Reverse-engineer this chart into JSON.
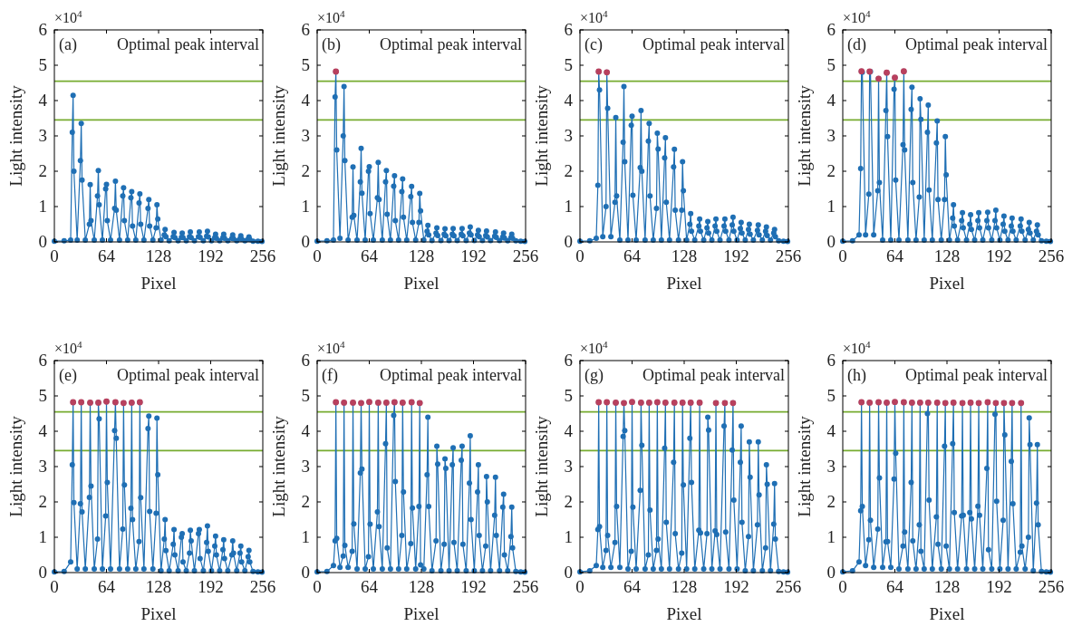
{
  "chart_data": [
    {
      "type": "line",
      "title": "(a)",
      "annotations": [
        "Optimal peak interval",
        "×10$^{4}$"
      ],
      "xlabel": "Pixel",
      "ylabel": "Light intensity",
      "xlim": [
        0,
        256
      ],
      "xticks": [
        0,
        64,
        128,
        192,
        256
      ],
      "ylim": [
        0,
        6
      ],
      "yticks": [
        0,
        1,
        2,
        3,
        4,
        5,
        6
      ],
      "marker": "circle",
      "ref_lines": [
        {
          "axis": "y",
          "value": 4.55,
          "color": "#77ac30"
        },
        {
          "axis": "y",
          "value": 3.45,
          "color": "#77ac30"
        }
      ],
      "x": [
        0,
        12,
        20,
        22,
        23,
        24,
        28,
        32,
        33,
        34,
        38,
        43,
        44,
        45,
        49,
        53,
        54,
        55,
        59,
        63,
        64,
        65,
        69,
        74,
        75,
        76,
        80,
        84,
        85,
        86,
        90,
        94,
        95,
        96,
        100,
        104,
        105,
        106,
        110,
        115,
        116,
        117,
        121,
        125,
        126,
        127,
        131,
        135,
        136,
        137,
        141,
        146,
        147,
        148,
        152,
        156,
        157,
        158,
        162,
        166,
        167,
        168,
        172,
        177,
        178,
        179,
        183,
        187,
        188,
        189,
        193,
        197,
        198,
        199,
        203,
        207,
        208,
        209,
        213,
        218,
        219,
        220,
        224,
        228,
        229,
        230,
        234,
        238,
        239,
        240,
        244,
        250,
        255
      ],
      "series": [
        {
          "type": "line",
          "color": "#1f6fb4",
          "values": [
            0.02,
            0.03,
            0.05,
            3.1,
            4.15,
            2.0,
            0.05,
            2.3,
            3.35,
            1.75,
            0.05,
            0.5,
            1.62,
            0.6,
            0.05,
            1.3,
            2.02,
            1.05,
            0.05,
            1.5,
            1.63,
            0.6,
            0.05,
            0.95,
            1.72,
            0.9,
            0.05,
            1.3,
            1.53,
            0.6,
            0.05,
            1.25,
            1.42,
            0.45,
            0.05,
            1.1,
            1.36,
            0.5,
            0.05,
            0.95,
            1.2,
            0.45,
            0.05,
            0.4,
            1.05,
            0.65,
            0.05,
            0.2,
            0.35,
            0.15,
            0.03,
            0.15,
            0.27,
            0.12,
            0.03,
            0.13,
            0.25,
            0.12,
            0.03,
            0.15,
            0.28,
            0.12,
            0.03,
            0.15,
            0.28,
            0.13,
            0.03,
            0.16,
            0.3,
            0.14,
            0.03,
            0.12,
            0.22,
            0.1,
            0.03,
            0.12,
            0.22,
            0.1,
            0.03,
            0.1,
            0.2,
            0.09,
            0.03,
            0.09,
            0.17,
            0.08,
            0.03,
            0.08,
            0.14,
            0.07,
            0.02,
            0.02,
            0.01
          ]
        }
      ]
    },
    {
      "type": "line",
      "title": "(b)",
      "annotations": [
        "Optimal peak interval",
        "×10$^{4}$"
      ],
      "xlabel": "Pixel",
      "ylabel": "Light intensity",
      "xlim": [
        0,
        256
      ],
      "xticks": [
        0,
        64,
        128,
        192,
        256
      ],
      "ylim": [
        0,
        6
      ],
      "yticks": [
        0,
        1,
        2,
        3,
        4,
        5,
        6
      ],
      "marker": "circle",
      "ref_lines": [
        {
          "axis": "y",
          "value": 4.55,
          "color": "#77ac30"
        },
        {
          "axis": "y",
          "value": 3.45,
          "color": "#77ac30"
        }
      ],
      "x": [
        0,
        12,
        20,
        22,
        23,
        24,
        28,
        32,
        33,
        34,
        38,
        43,
        44,
        45,
        49,
        53,
        54,
        55,
        59,
        63,
        64,
        65,
        69,
        74,
        75,
        76,
        80,
        84,
        85,
        86,
        90,
        94,
        95,
        96,
        100,
        104,
        105,
        106,
        110,
        115,
        116,
        117,
        121,
        125,
        126,
        127,
        131,
        135,
        136,
        137,
        141,
        146,
        147,
        148,
        152,
        156,
        157,
        158,
        162,
        166,
        167,
        168,
        172,
        177,
        178,
        179,
        183,
        187,
        188,
        189,
        193,
        197,
        198,
        199,
        203,
        207,
        208,
        209,
        213,
        218,
        219,
        220,
        224,
        228,
        229,
        230,
        234,
        238,
        239,
        240,
        244,
        250,
        255
      ],
      "series": [
        {
          "type": "line",
          "color": "#1f6fb4",
          "values": [
            0.02,
            0.03,
            0.05,
            4.1,
            4.82,
            2.6,
            0.1,
            3.0,
            4.4,
            2.3,
            0.05,
            0.7,
            2.12,
            0.75,
            0.05,
            1.7,
            2.65,
            1.38,
            0.05,
            2.0,
            2.13,
            0.8,
            0.05,
            1.25,
            2.25,
            1.2,
            0.05,
            1.7,
            2.02,
            0.78,
            0.05,
            1.58,
            1.87,
            0.6,
            0.05,
            1.42,
            1.78,
            0.7,
            0.05,
            1.28,
            1.57,
            0.55,
            0.05,
            0.55,
            1.37,
            0.88,
            0.05,
            0.3,
            0.47,
            0.2,
            0.04,
            0.25,
            0.4,
            0.18,
            0.04,
            0.22,
            0.37,
            0.17,
            0.04,
            0.22,
            0.38,
            0.17,
            0.04,
            0.22,
            0.38,
            0.17,
            0.04,
            0.25,
            0.42,
            0.2,
            0.04,
            0.2,
            0.33,
            0.15,
            0.04,
            0.18,
            0.31,
            0.14,
            0.04,
            0.16,
            0.28,
            0.13,
            0.04,
            0.14,
            0.25,
            0.11,
            0.03,
            0.12,
            0.22,
            0.1,
            0.03,
            0.02,
            0.01
          ]
        },
        {
          "type": "scatter",
          "color": "#b8405e",
          "x": [
            23
          ],
          "values": [
            4.82
          ]
        }
      ]
    },
    {
      "type": "line",
      "title": "(c)",
      "annotations": [
        "Optimal peak interval",
        "×10$^{4}$"
      ],
      "xlabel": "Pixel",
      "ylabel": "Light intensity",
      "xlim": [
        0,
        256
      ],
      "xticks": [
        0,
        64,
        128,
        192,
        256
      ],
      "ylim": [
        0,
        6
      ],
      "yticks": [
        0,
        1,
        2,
        3,
        4,
        5,
        6
      ],
      "marker": "circle",
      "ref_lines": [
        {
          "axis": "y",
          "value": 4.55,
          "color": "#77ac30"
        },
        {
          "axis": "y",
          "value": 3.45,
          "color": "#77ac30"
        }
      ],
      "x": [
        0,
        12,
        20,
        22,
        23,
        24,
        28,
        32,
        33,
        34,
        38,
        43,
        44,
        45,
        49,
        53,
        54,
        55,
        59,
        63,
        64,
        65,
        69,
        74,
        75,
        76,
        80,
        84,
        85,
        86,
        90,
        94,
        95,
        96,
        100,
        104,
        105,
        106,
        110,
        115,
        116,
        117,
        121,
        125,
        126,
        127,
        131,
        135,
        136,
        137,
        141,
        146,
        147,
        148,
        152,
        156,
        157,
        158,
        162,
        166,
        167,
        168,
        172,
        177,
        178,
        179,
        183,
        187,
        188,
        189,
        193,
        197,
        198,
        199,
        203,
        207,
        208,
        209,
        213,
        218,
        219,
        220,
        224,
        228,
        229,
        230,
        234,
        238,
        239,
        240,
        244,
        250,
        255
      ],
      "series": [
        {
          "type": "line",
          "color": "#1f6fb4",
          "values": [
            0.02,
            0.03,
            0.1,
            1.6,
            4.82,
            4.3,
            0.15,
            1.0,
            4.8,
            3.78,
            0.15,
            1.12,
            3.52,
            1.3,
            0.05,
            2.82,
            4.4,
            2.27,
            0.05,
            3.3,
            3.56,
            1.32,
            0.05,
            2.1,
            3.72,
            2.0,
            0.05,
            2.85,
            3.35,
            1.3,
            0.05,
            0.95,
            3.08,
            2.63,
            0.05,
            2.38,
            2.95,
            1.12,
            0.05,
            2.12,
            2.62,
            0.9,
            0.05,
            0.9,
            2.27,
            1.45,
            0.05,
            0.5,
            0.8,
            0.3,
            0.05,
            0.45,
            0.65,
            0.3,
            0.05,
            0.4,
            0.58,
            0.25,
            0.05,
            0.45,
            0.65,
            0.3,
            0.05,
            0.45,
            0.65,
            0.3,
            0.05,
            0.48,
            0.7,
            0.3,
            0.05,
            0.38,
            0.55,
            0.25,
            0.05,
            0.35,
            0.5,
            0.22,
            0.05,
            0.33,
            0.48,
            0.2,
            0.05,
            0.3,
            0.42,
            0.18,
            0.05,
            0.25,
            0.35,
            0.15,
            0.03,
            0.02,
            0.01
          ]
        },
        {
          "type": "scatter",
          "color": "#b8405e",
          "x": [
            23,
            33
          ],
          "values": [
            4.82,
            4.8
          ]
        }
      ]
    },
    {
      "type": "line",
      "title": "(d)",
      "annotations": [
        "Optimal peak interval",
        "×10$^{4}$"
      ],
      "xlabel": "Pixel",
      "ylabel": "Light intensity",
      "xlim": [
        0,
        256
      ],
      "xticks": [
        0,
        64,
        128,
        192,
        256
      ],
      "ylim": [
        0,
        6
      ],
      "yticks": [
        0,
        1,
        2,
        3,
        4,
        5,
        6
      ],
      "marker": "circle",
      "ref_lines": [
        {
          "axis": "y",
          "value": 4.55,
          "color": "#77ac30"
        },
        {
          "axis": "y",
          "value": 3.45,
          "color": "#77ac30"
        }
      ],
      "x": [
        0,
        12,
        20,
        22,
        23,
        24,
        28,
        32,
        33,
        34,
        38,
        43,
        44,
        45,
        49,
        53,
        54,
        55,
        59,
        63,
        64,
        65,
        69,
        74,
        75,
        76,
        80,
        84,
        85,
        86,
        90,
        94,
        95,
        96,
        100,
        104,
        105,
        106,
        110,
        115,
        116,
        117,
        121,
        125,
        126,
        127,
        131,
        135,
        136,
        137,
        141,
        146,
        147,
        148,
        152,
        156,
        157,
        158,
        162,
        166,
        167,
        168,
        172,
        177,
        178,
        179,
        183,
        187,
        188,
        189,
        193,
        197,
        198,
        199,
        203,
        207,
        208,
        209,
        213,
        218,
        219,
        220,
        224,
        228,
        229,
        230,
        234,
        238,
        239,
        240,
        244,
        250,
        255
      ],
      "series": [
        {
          "type": "line",
          "color": "#1f6fb4",
          "values": [
            0.02,
            0.03,
            0.2,
            2.08,
            4.83,
            4.8,
            0.2,
            1.35,
            4.82,
            4.82,
            0.2,
            1.45,
            4.62,
            1.68,
            0.05,
            3.72,
            4.79,
            2.98,
            0.05,
            4.32,
            4.65,
            1.75,
            0.05,
            2.75,
            4.83,
            2.6,
            0.05,
            3.75,
            4.38,
            1.68,
            0.05,
            1.27,
            4.05,
            3.47,
            0.05,
            3.1,
            3.87,
            1.47,
            0.05,
            2.8,
            3.42,
            1.2,
            0.05,
            1.2,
            2.98,
            1.9,
            0.05,
            0.67,
            1.05,
            0.45,
            0.05,
            0.6,
            0.83,
            0.4,
            0.05,
            0.5,
            0.77,
            0.35,
            0.05,
            0.6,
            0.83,
            0.4,
            0.05,
            0.6,
            0.84,
            0.4,
            0.05,
            0.6,
            0.9,
            0.4,
            0.05,
            0.5,
            0.73,
            0.3,
            0.05,
            0.45,
            0.67,
            0.3,
            0.05,
            0.45,
            0.65,
            0.3,
            0.05,
            0.35,
            0.55,
            0.25,
            0.05,
            0.3,
            0.48,
            0.2,
            0.03,
            0.02,
            0.01
          ]
        },
        {
          "type": "scatter",
          "color": "#b8405e",
          "x": [
            23,
            33,
            44,
            54,
            64,
            75
          ],
          "values": [
            4.83,
            4.82,
            4.62,
            4.79,
            4.65,
            4.83
          ]
        }
      ]
    },
    {
      "type": "line",
      "title": "(e)",
      "annotations": [
        "Optimal peak interval",
        "×10$^{4}$"
      ],
      "xlabel": "Pixel",
      "ylabel": "Light intensity",
      "xlim": [
        0,
        256
      ],
      "xticks": [
        0,
        64,
        128,
        192,
        256
      ],
      "ylim": [
        0,
        6
      ],
      "yticks": [
        0,
        1,
        2,
        3,
        4,
        5,
        6
      ],
      "marker": "circle",
      "ref_lines": [
        {
          "axis": "y",
          "value": 4.55,
          "color": "#77ac30"
        },
        {
          "axis": "y",
          "value": 3.45,
          "color": "#77ac30"
        }
      ],
      "x": [
        0,
        12,
        20,
        22,
        23,
        24,
        28,
        32,
        33,
        34,
        38,
        43,
        44,
        45,
        49,
        53,
        54,
        55,
        59,
        63,
        64,
        65,
        69,
        74,
        75,
        76,
        80,
        84,
        85,
        86,
        90,
        94,
        95,
        96,
        100,
        104,
        105,
        106,
        110,
        115,
        116,
        117,
        121,
        125,
        126,
        127,
        131,
        135,
        136,
        137,
        141,
        146,
        147,
        148,
        152,
        156,
        157,
        158,
        162,
        166,
        167,
        168,
        172,
        177,
        178,
        179,
        183,
        187,
        188,
        189,
        193,
        197,
        198,
        199,
        203,
        207,
        208,
        209,
        213,
        218,
        219,
        220,
        224,
        228,
        229,
        230,
        234,
        238,
        239,
        240,
        244,
        250,
        255
      ],
      "series": [
        {
          "type": "line",
          "color": "#1f6fb4",
          "values": [
            0.02,
            0.03,
            0.3,
            3.05,
            4.82,
            1.98,
            0.1,
            1.95,
            4.82,
            1.72,
            0.1,
            2.13,
            4.81,
            2.45,
            0.1,
            0.95,
            4.81,
            4.35,
            0.1,
            1.6,
            4.84,
            2.55,
            0.1,
            4.02,
            4.82,
            3.8,
            0.1,
            1.23,
            4.8,
            2.48,
            0.1,
            1.82,
            4.81,
            1.5,
            0.1,
            0.88,
            4.82,
            2.12,
            0.1,
            4.08,
            4.43,
            1.73,
            0.1,
            1.68,
            4.37,
            2.77,
            0.05,
            0.95,
            1.5,
            0.62,
            0.05,
            0.8,
            1.22,
            0.5,
            0.05,
            1.0,
            1.1,
            0.3,
            0.05,
            0.55,
            1.2,
            0.9,
            0.05,
            1.1,
            1.22,
            0.4,
            0.05,
            0.85,
            1.32,
            0.6,
            0.05,
            0.75,
            1.03,
            0.5,
            0.05,
            0.65,
            0.93,
            0.4,
            0.05,
            0.5,
            0.9,
            0.55,
            0.05,
            0.55,
            0.75,
            0.3,
            0.05,
            0.45,
            0.63,
            0.3,
            0.03,
            0.02,
            0.01
          ]
        },
        {
          "type": "scatter",
          "color": "#b8405e",
          "x": [
            23,
            33,
            44,
            54,
            64,
            75,
            85,
            95,
            105
          ],
          "values": [
            4.82,
            4.82,
            4.81,
            4.81,
            4.84,
            4.82,
            4.8,
            4.81,
            4.82
          ]
        }
      ]
    },
    {
      "type": "line",
      "title": "(f)",
      "annotations": [
        "Optimal peak interval",
        "×10$^{4}$"
      ],
      "xlabel": "Pixel",
      "ylabel": "Light intensity",
      "xlim": [
        0,
        256
      ],
      "xticks": [
        0,
        64,
        128,
        192,
        256
      ],
      "ylim": [
        0,
        6
      ],
      "yticks": [
        0,
        1,
        2,
        3,
        4,
        5,
        6
      ],
      "marker": "circle",
      "ref_lines": [
        {
          "axis": "y",
          "value": 4.55,
          "color": "#77ac30"
        },
        {
          "axis": "y",
          "value": 3.45,
          "color": "#77ac30"
        }
      ],
      "x": [
        0,
        12,
        20,
        22,
        23,
        24,
        28,
        32,
        33,
        34,
        38,
        43,
        44,
        45,
        49,
        53,
        54,
        55,
        59,
        63,
        64,
        65,
        69,
        74,
        75,
        76,
        80,
        84,
        85,
        86,
        90,
        94,
        95,
        96,
        100,
        104,
        105,
        106,
        110,
        115,
        116,
        117,
        121,
        125,
        126,
        127,
        131,
        135,
        136,
        137,
        141,
        146,
        147,
        148,
        152,
        156,
        157,
        158,
        162,
        166,
        167,
        168,
        172,
        177,
        178,
        179,
        183,
        187,
        188,
        189,
        193,
        197,
        198,
        199,
        203,
        207,
        208,
        209,
        213,
        218,
        219,
        220,
        224,
        228,
        229,
        230,
        234,
        238,
        239,
        240,
        244,
        250,
        255
      ],
      "series": [
        {
          "type": "line",
          "color": "#1f6fb4",
          "values": [
            0.02,
            0.03,
            0.2,
            0.9,
            4.82,
            0.97,
            0.15,
            0.47,
            4.81,
            0.77,
            0.15,
            0.6,
            4.81,
            1.38,
            0.1,
            2.82,
            4.8,
            2.93,
            0.1,
            0.45,
            4.83,
            1.37,
            0.1,
            1.72,
            4.81,
            1.3,
            0.1,
            3.65,
            4.81,
            0.7,
            0.1,
            4.45,
            4.82,
            2.58,
            0.1,
            1.05,
            4.81,
            2.28,
            0.1,
            0.82,
            4.82,
            1.83,
            0.1,
            1.87,
            4.8,
            0.22,
            0.1,
            2.77,
            4.4,
            1.87,
            0.05,
            0.9,
            3.58,
            3.07,
            0.05,
            0.8,
            3.22,
            2.95,
            0.05,
            3.05,
            3.53,
            0.85,
            0.05,
            3.18,
            3.58,
            0.8,
            0.05,
            2.53,
            3.87,
            1.5,
            0.05,
            2.28,
            3.05,
            1.05,
            0.05,
            0.75,
            2.72,
            2.0,
            0.05,
            1.62,
            2.7,
            1.05,
            0.05,
            1.85,
            2.22,
            0.5,
            0.05,
            1.02,
            1.85,
            0.7,
            0.03,
            0.02,
            0.01
          ]
        },
        {
          "type": "scatter",
          "color": "#b8405e",
          "x": [
            23,
            33,
            44,
            54,
            64,
            75,
            85,
            95,
            105,
            116,
            126
          ],
          "values": [
            4.82,
            4.81,
            4.81,
            4.8,
            4.83,
            4.81,
            4.81,
            4.82,
            4.81,
            4.82,
            4.8
          ]
        }
      ]
    },
    {
      "type": "line",
      "title": "(g)",
      "annotations": [
        "Optimal peak interval",
        "×10$^{4}$"
      ],
      "xlabel": "Pixel",
      "ylabel": "Light intensity",
      "xlim": [
        0,
        256
      ],
      "xticks": [
        0,
        64,
        128,
        192,
        256
      ],
      "ylim": [
        0,
        6
      ],
      "yticks": [
        0,
        1,
        2,
        3,
        4,
        5,
        6
      ],
      "marker": "circle",
      "ref_lines": [
        {
          "axis": "y",
          "value": 4.55,
          "color": "#77ac30"
        },
        {
          "axis": "y",
          "value": 3.45,
          "color": "#77ac30"
        }
      ],
      "x": [
        0,
        12,
        20,
        22,
        23,
        24,
        28,
        32,
        33,
        34,
        38,
        43,
        44,
        45,
        49,
        53,
        54,
        55,
        59,
        63,
        64,
        65,
        69,
        74,
        75,
        76,
        80,
        84,
        85,
        86,
        90,
        94,
        95,
        96,
        100,
        104,
        105,
        106,
        110,
        115,
        116,
        117,
        121,
        125,
        126,
        127,
        131,
        135,
        136,
        137,
        141,
        146,
        147,
        148,
        152,
        156,
        157,
        158,
        162,
        166,
        167,
        168,
        172,
        177,
        178,
        179,
        183,
        187,
        188,
        189,
        193,
        197,
        198,
        199,
        203,
        207,
        208,
        209,
        213,
        218,
        219,
        220,
        224,
        228,
        229,
        230,
        234,
        238,
        239,
        240,
        244,
        250,
        255
      ],
      "series": [
        {
          "type": "line",
          "color": "#1f6fb4",
          "values": [
            0.02,
            0.05,
            0.2,
            1.22,
            4.82,
            1.3,
            0.15,
            0.63,
            4.82,
            1.05,
            0.15,
            0.85,
            4.81,
            1.87,
            0.15,
            3.85,
            4.8,
            4.02,
            0.1,
            0.6,
            4.83,
            1.85,
            0.1,
            2.33,
            4.81,
            3.6,
            0.1,
            0.5,
            4.81,
            1.77,
            0.1,
            0.63,
            4.82,
            0.95,
            0.1,
            3.52,
            4.81,
            1.42,
            0.1,
            3.12,
            4.81,
            1.1,
            0.1,
            0.55,
            4.81,
            2.48,
            0.1,
            3.8,
            4.81,
            2.55,
            0.1,
            1.2,
            4.81,
            1.12,
            0.1,
            1.1,
            4.4,
            4.03,
            0.1,
            1.18,
            4.8,
            1.08,
            0.1,
            4.15,
            4.8,
            1.15,
            0.1,
            3.47,
            4.8,
            2.05,
            0.1,
            3.12,
            4.15,
            1.42,
            0.05,
            1.02,
            3.7,
            2.7,
            0.05,
            1.35,
            3.7,
            2.2,
            0.05,
            0.7,
            3.05,
            2.5,
            0.05,
            1.37,
            2.52,
            0.95,
            0.03,
            0.02,
            0.01
          ]
        },
        {
          "type": "scatter",
          "color": "#b8405e",
          "x": [
            23,
            33,
            44,
            54,
            64,
            75,
            85,
            95,
            105,
            116,
            126,
            136,
            147,
            167,
            178,
            188
          ],
          "values": [
            4.82,
            4.82,
            4.81,
            4.8,
            4.83,
            4.81,
            4.81,
            4.82,
            4.81,
            4.81,
            4.81,
            4.81,
            4.81,
            4.8,
            4.8,
            4.8
          ]
        }
      ]
    },
    {
      "type": "line",
      "title": "(h)",
      "annotations": [
        "Optimal peak interval",
        "×10$^{4}$"
      ],
      "xlabel": "Pixel",
      "ylabel": "Light intensity",
      "xlim": [
        0,
        256
      ],
      "xticks": [
        0,
        64,
        128,
        192,
        256
      ],
      "ylim": [
        0,
        6
      ],
      "yticks": [
        0,
        1,
        2,
        3,
        4,
        5,
        6
      ],
      "marker": "circle",
      "ref_lines": [
        {
          "axis": "y",
          "value": 4.55,
          "color": "#77ac30"
        },
        {
          "axis": "y",
          "value": 3.45,
          "color": "#77ac30"
        }
      ],
      "x": [
        0,
        12,
        20,
        22,
        23,
        24,
        28,
        32,
        33,
        34,
        38,
        43,
        44,
        45,
        49,
        53,
        54,
        55,
        59,
        63,
        64,
        65,
        69,
        74,
        75,
        76,
        80,
        84,
        85,
        86,
        90,
        94,
        95,
        96,
        100,
        104,
        105,
        106,
        110,
        115,
        116,
        117,
        121,
        125,
        126,
        127,
        131,
        135,
        136,
        137,
        141,
        146,
        147,
        148,
        152,
        156,
        157,
        158,
        162,
        166,
        167,
        168,
        172,
        177,
        178,
        179,
        183,
        187,
        188,
        189,
        193,
        197,
        198,
        199,
        203,
        207,
        208,
        209,
        213,
        218,
        219,
        220,
        224,
        228,
        229,
        230,
        234,
        238,
        239,
        240,
        244,
        250,
        255
      ],
      "series": [
        {
          "type": "line",
          "color": "#1f6fb4",
          "values": [
            0.02,
            0.05,
            0.3,
            1.75,
            4.82,
            1.87,
            0.2,
            0.93,
            4.81,
            1.48,
            0.15,
            1.23,
            4.82,
            2.68,
            0.15,
            0.87,
            4.81,
            0.88,
            0.15,
            2.65,
            4.83,
            3.38,
            0.1,
            0.75,
            4.82,
            1.15,
            0.1,
            2.55,
            4.81,
            0.9,
            0.1,
            1.35,
            4.81,
            0.6,
            0.1,
            4.5,
            4.81,
            2.05,
            0.1,
            1.58,
            4.81,
            0.8,
            0.1,
            3.58,
            4.8,
            0.75,
            0.1,
            3.65,
            4.81,
            1.7,
            0.1,
            1.6,
            4.8,
            1.62,
            0.1,
            1.7,
            4.81,
            1.52,
            0.1,
            1.88,
            4.8,
            1.62,
            0.1,
            2.95,
            4.82,
            0.65,
            0.1,
            4.48,
            4.8,
            2.02,
            0.1,
            1.48,
            4.8,
            3.9,
            0.1,
            3.15,
            4.8,
            1.95,
            0.1,
            0.58,
            4.8,
            0.75,
            0.1,
            1.0,
            4.38,
            3.62,
            0.05,
            1.97,
            3.62,
            1.35,
            0.03,
            0.02,
            0.01
          ]
        },
        {
          "type": "scatter",
          "color": "#b8405e",
          "x": [
            23,
            33,
            44,
            54,
            64,
            75,
            85,
            95,
            105,
            116,
            126,
            136,
            147,
            157,
            167,
            178,
            188,
            198,
            208,
            219
          ],
          "values": [
            4.82,
            4.81,
            4.82,
            4.81,
            4.83,
            4.82,
            4.81,
            4.81,
            4.81,
            4.81,
            4.8,
            4.81,
            4.8,
            4.81,
            4.8,
            4.82,
            4.8,
            4.8,
            4.8,
            4.8
          ]
        }
      ]
    }
  ]
}
